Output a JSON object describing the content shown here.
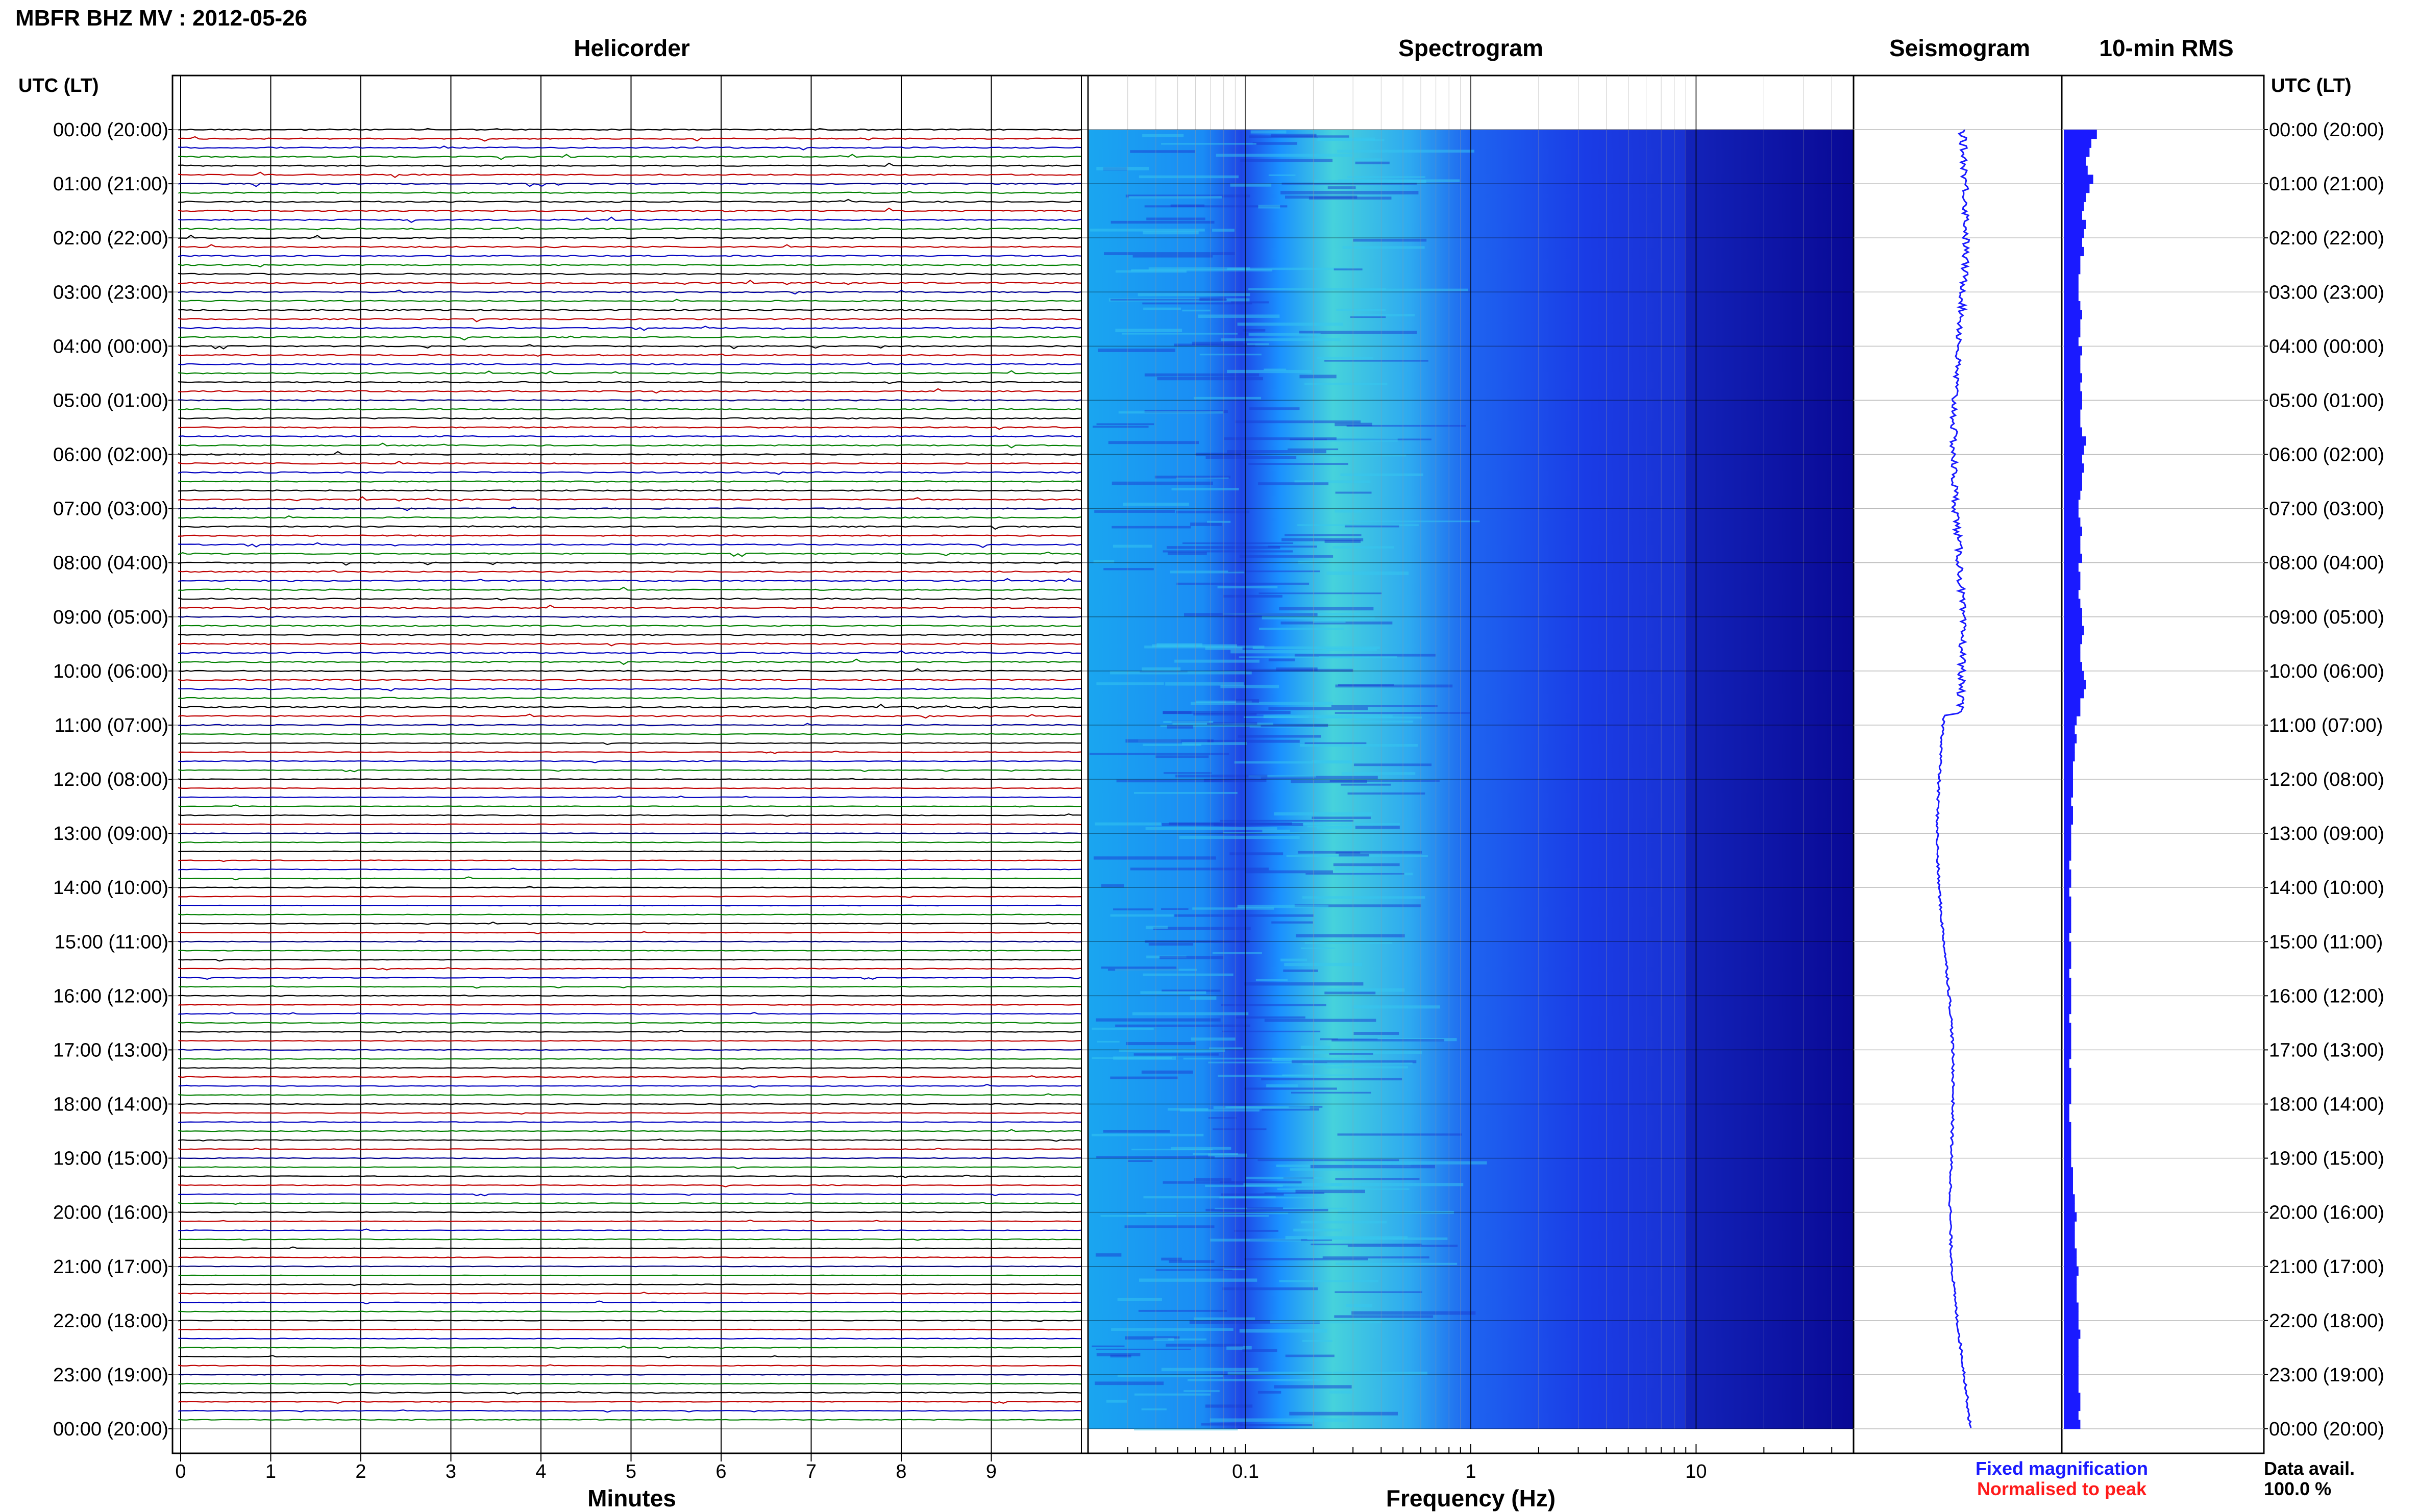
{
  "header": {
    "title": "MBFR BHZ MV : 2012-05-26",
    "time_axis_label": "UTC (LT)"
  },
  "panels": {
    "helicorder": "Helicorder",
    "spectrogram": "Spectrogram",
    "seismogram": "Seismogram",
    "rms": "10-min RMS"
  },
  "footer": {
    "minutes_label": "Minutes",
    "frequency_label": "Frequency (Hz)",
    "fixed_magnification": "Fixed magnification",
    "normalised_to_peak": "Normalised to peak",
    "data_avail_label": "Data avail.",
    "data_avail_value": "100.0 %"
  },
  "colors": {
    "fixed_magnification": "#1a1aff",
    "normalised_to_peak": "#ff1a1a",
    "trace_black": "#000000",
    "trace_red": "#c00000",
    "trace_blue": "#0000c0",
    "trace_green": "#008000",
    "spectrogram_low": "#00008c",
    "spectrogram_mid": "#1e5aff",
    "spectrogram_high": "#50e6c8",
    "seismogram": "#1a1aff",
    "rms_bars": "#1a1aff"
  },
  "chart_data": [
    {
      "type": "line",
      "name": "helicorder",
      "title": "Helicorder",
      "xlabel": "Minutes",
      "x_ticks": [
        "0",
        "1",
        "2",
        "3",
        "4",
        "5",
        "6",
        "7",
        "8",
        "9"
      ],
      "xlim": [
        0,
        10
      ],
      "rows_per_hour": 6,
      "hours": 24,
      "row_colors": [
        "#000000",
        "#c00000",
        "#0000c0",
        "#008000"
      ],
      "y_tick_labels": [
        "00:00 (20:00)",
        "01:00 (21:00)",
        "02:00 (22:00)",
        "03:00 (23:00)",
        "04:00 (00:00)",
        "05:00 (01:00)",
        "06:00 (02:00)",
        "07:00 (03:00)",
        "08:00 (04:00)",
        "09:00 (05:00)",
        "10:00 (06:00)",
        "11:00 (07:00)",
        "12:00 (08:00)",
        "13:00 (09:00)",
        "14:00 (10:00)",
        "15:00 (11:00)",
        "16:00 (12:00)",
        "17:00 (13:00)",
        "18:00 (14:00)",
        "19:00 (15:00)",
        "20:00 (16:00)",
        "21:00 (17:00)",
        "22:00 (18:00)",
        "23:00 (19:00)",
        "00:00 (20:00)"
      ]
    },
    {
      "type": "heatmap",
      "name": "spectrogram",
      "title": "Spectrogram",
      "xlabel": "Frequency (Hz)",
      "x_scale": "log",
      "xlim": [
        0.02,
        50
      ],
      "x_tick_labels": [
        "0.1",
        "1",
        "10"
      ],
      "x_tick_values": [
        0.1,
        1,
        10
      ]
    },
    {
      "type": "line",
      "name": "seismogram",
      "title": "Seismogram"
    },
    {
      "type": "bar",
      "name": "rms",
      "title": "10-min RMS",
      "orientation": "horizontal",
      "values_relative": [
        0.18,
        0.15,
        0.14,
        0.12,
        0.13,
        0.16,
        0.14,
        0.12,
        0.11,
        0.1,
        0.12,
        0.11,
        0.1,
        0.11,
        0.09,
        0.09,
        0.08,
        0.08,
        0.08,
        0.09,
        0.1,
        0.09,
        0.09,
        0.08,
        0.1,
        0.09,
        0.09,
        0.1,
        0.09,
        0.1,
        0.1,
        0.09,
        0.09,
        0.1,
        0.12,
        0.11,
        0.1,
        0.11,
        0.1,
        0.1,
        0.09,
        0.08,
        0.08,
        0.09,
        0.1,
        0.09,
        0.09,
        0.1,
        0.08,
        0.09,
        0.09,
        0.08,
        0.09,
        0.1,
        0.1,
        0.11,
        0.1,
        0.09,
        0.09,
        0.1,
        0.11,
        0.12,
        0.11,
        0.09,
        0.09,
        0.07,
        0.06,
        0.07,
        0.06,
        0.06,
        0.05,
        0.05,
        0.05,
        0.05,
        0.04,
        0.05,
        0.05,
        0.04,
        0.04,
        0.04,
        0.04,
        0.03,
        0.04,
        0.04,
        0.03,
        0.04,
        0.04,
        0.04,
        0.04,
        0.03,
        0.04,
        0.04,
        0.04,
        0.03,
        0.04,
        0.04,
        0.04,
        0.04,
        0.03,
        0.04,
        0.04,
        0.04,
        0.04,
        0.03,
        0.04,
        0.04,
        0.04,
        0.04,
        0.03,
        0.03,
        0.04,
        0.04,
        0.04,
        0.04,
        0.04,
        0.05,
        0.05,
        0.05,
        0.06,
        0.06,
        0.07,
        0.06,
        0.06,
        0.06,
        0.07,
        0.07,
        0.08,
        0.07,
        0.07,
        0.07,
        0.08,
        0.08,
        0.08,
        0.09,
        0.08,
        0.08,
        0.08,
        0.08,
        0.08,
        0.08,
        0.09,
        0.09,
        0.08,
        0.09
      ]
    }
  ]
}
